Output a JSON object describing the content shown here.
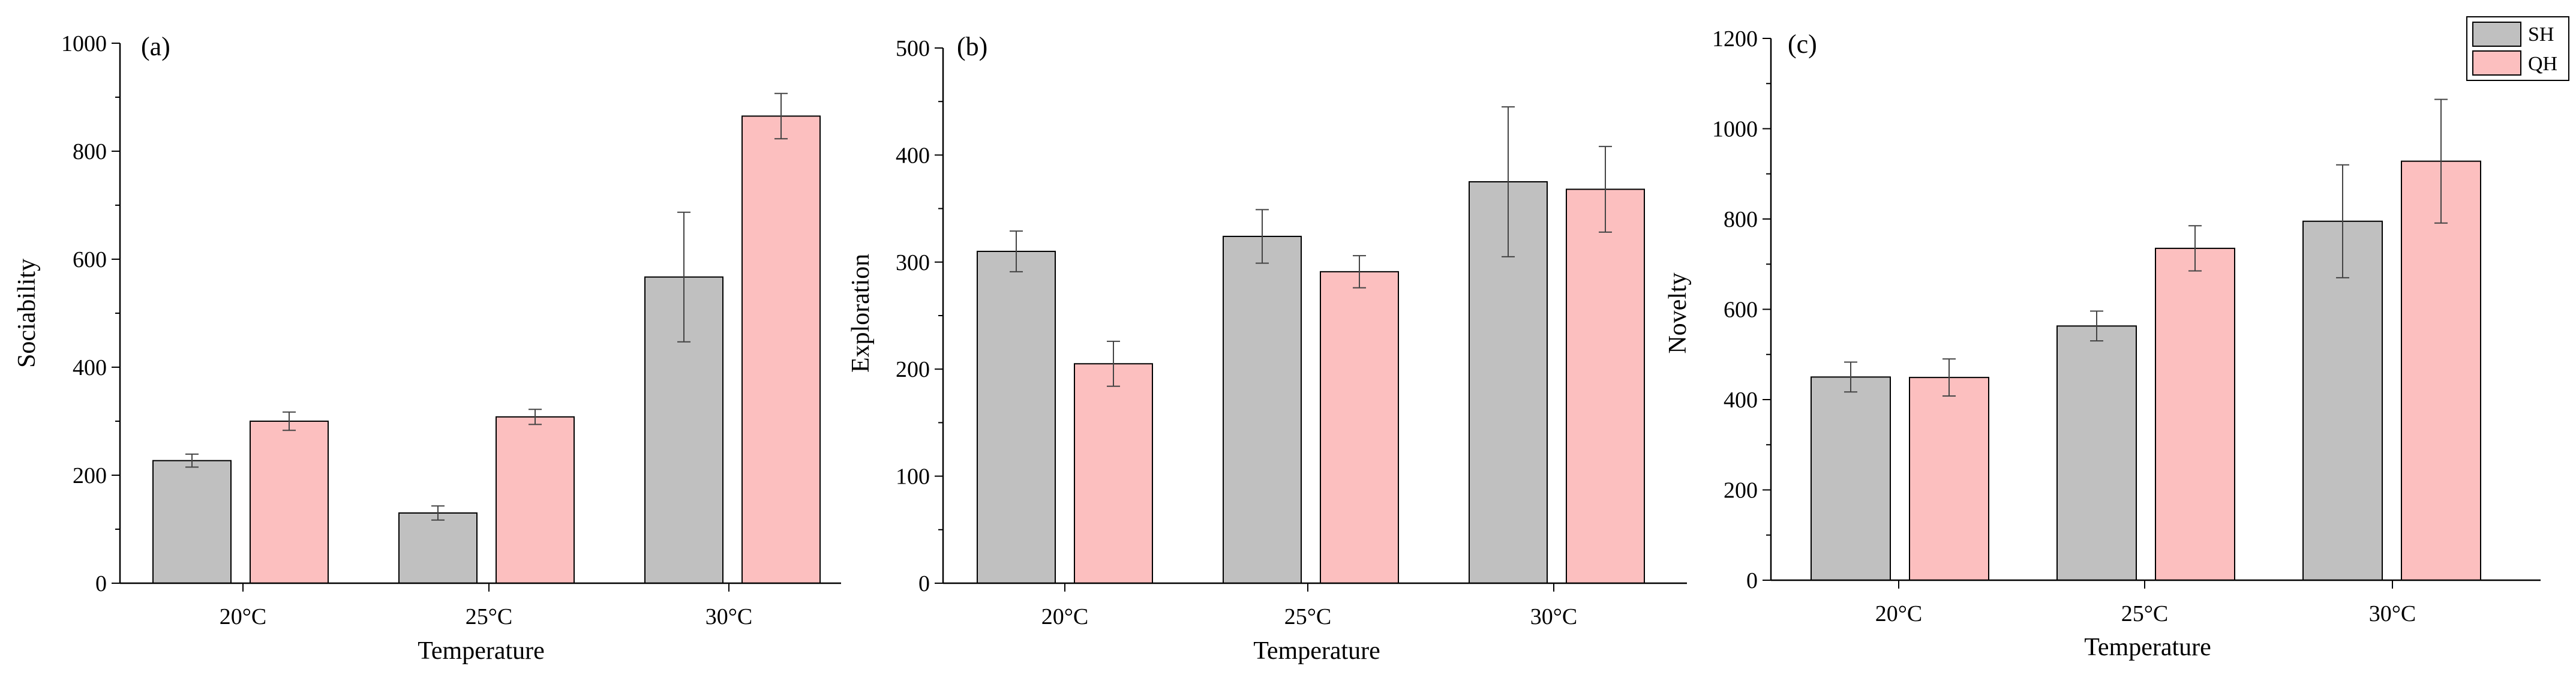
{
  "chart_data": [
    {
      "type": "bar",
      "panel_label": "(a)",
      "ylabel": "Sociability",
      "xlabel": "Temperature",
      "categories": [
        "20°C",
        "25°C",
        "30°C"
      ],
      "ylim": [
        0,
        1000
      ],
      "yticks": [
        0,
        200,
        400,
        600,
        800,
        1000
      ],
      "series": [
        {
          "name": "SH",
          "values": [
            227,
            130,
            567
          ],
          "errors": [
            12,
            13,
            120
          ]
        },
        {
          "name": "QH",
          "values": [
            300,
            308,
            865
          ],
          "errors": [
            17,
            14,
            42
          ]
        }
      ]
    },
    {
      "type": "bar",
      "panel_label": "(b)",
      "ylabel": "Exploration",
      "xlabel": "Temperature",
      "categories": [
        "20°C",
        "25°C",
        "30°C"
      ],
      "ylim": [
        0,
        500
      ],
      "yticks": [
        0,
        100,
        200,
        300,
        400,
        500
      ],
      "series": [
        {
          "name": "SH",
          "values": [
            310,
            324,
            375
          ],
          "errors": [
            19,
            25,
            70
          ]
        },
        {
          "name": "QH",
          "values": [
            205,
            291,
            368
          ],
          "errors": [
            21,
            15,
            40
          ]
        }
      ]
    },
    {
      "type": "bar",
      "panel_label": "(c)",
      "ylabel": "Novelty",
      "xlabel": "Temperature",
      "categories": [
        "20°C",
        "25°C",
        "30°C"
      ],
      "ylim": [
        0,
        1200
      ],
      "yticks": [
        0,
        200,
        400,
        600,
        800,
        1000,
        1200
      ],
      "series": [
        {
          "name": "SH",
          "values": [
            450,
            563,
            795
          ],
          "errors": [
            33,
            33,
            125
          ]
        },
        {
          "name": "QH",
          "values": [
            449,
            735,
            928
          ],
          "errors": [
            41,
            50,
            137
          ]
        }
      ],
      "legend": {
        "placement": "top-right",
        "entries": [
          "SH",
          "QH"
        ]
      }
    }
  ],
  "colors": {
    "SH": "#c0c0c0",
    "QH": "#fcbfbf",
    "axis": "#000000"
  }
}
